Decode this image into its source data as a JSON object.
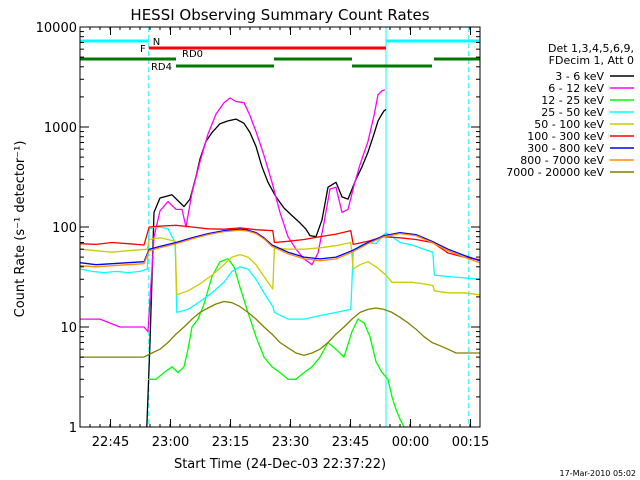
{
  "chart_data": {
    "type": "line",
    "title": "HESSI Observing Summary Count Rates",
    "xlabel": "Start Time (24-Dec-03 22:37:22)",
    "ylabel": "Count Rate (s⁻¹ detector⁻¹)",
    "y_scale": "log",
    "x_unit": "minutes since 22:37:22",
    "xlim": [
      0,
      100
    ],
    "ylim": [
      1,
      10000
    ],
    "x_ticks": [
      {
        "label": "22:45",
        "value": 7.63
      },
      {
        "label": "23:00",
        "value": 22.63
      },
      {
        "label": "23:15",
        "value": 37.63
      },
      {
        "label": "23:30",
        "value": 52.63
      },
      {
        "label": "23:45",
        "value": 67.63
      },
      {
        "label": "00:00",
        "value": 82.63
      },
      {
        "label": "00:15",
        "value": 97.63
      }
    ],
    "y_ticks": [
      {
        "label": "1",
        "value": 1
      },
      {
        "label": "10",
        "value": 10
      },
      {
        "label": "100",
        "value": 100
      },
      {
        "label": "1000",
        "value": 1000
      },
      {
        "label": "10000",
        "value": 10000
      }
    ],
    "timestamp": "17-Mar-2010 05:02",
    "legend": {
      "placement": "right",
      "header": [
        "Det 1,3,4,5,6,9,",
        "FDecim 1, Att 0"
      ],
      "entries": [
        {
          "label": "3 - 6 keV",
          "color": "#000000"
        },
        {
          "label": "6 - 12 keV",
          "color": "#ff00ff"
        },
        {
          "label": "12 - 25 keV",
          "color": "#00ff00"
        },
        {
          "label": "25 - 50 keV",
          "color": "#00ffff"
        },
        {
          "label": "50 - 100 keV",
          "color": "#cccc00"
        },
        {
          "label": "100 - 300 keV",
          "color": "#ff0000"
        },
        {
          "label": "300 - 800 keV",
          "color": "#0000ff"
        },
        {
          "label": "800 - 7000 keV",
          "color": "#ff8c00"
        },
        {
          "label": "7000 - 20000 keV",
          "color": "#808000"
        }
      ]
    },
    "flag_bars": [
      {
        "label": "N",
        "color": "#00ffff",
        "level": 1,
        "segments": [
          [
            0,
            17.2
          ],
          [
            76.5,
            100
          ]
        ]
      },
      {
        "label": "F",
        "color": "#ff0000",
        "level": 2,
        "segments": [
          [
            17.2,
            76.5
          ]
        ]
      },
      {
        "label": "RD0",
        "color": "#007700",
        "level": 3,
        "segments": [
          [
            0,
            24
          ],
          [
            48.5,
            68
          ],
          [
            88.5,
            100
          ]
        ]
      },
      {
        "label": "RD4",
        "color": "#007700",
        "level": 4,
        "segments": [
          [
            24,
            48.5
          ],
          [
            68,
            88
          ]
        ]
      }
    ],
    "vlines": [
      {
        "x": 0.0,
        "color": "#00ffff",
        "style": "solid"
      },
      {
        "x": 17.2,
        "color": "#00ffff",
        "style": "dashed"
      },
      {
        "x": 76.5,
        "color": "#00ffff",
        "style": "solid"
      },
      {
        "x": 97.2,
        "color": "#00ffff",
        "style": "dashed"
      }
    ],
    "series": [
      {
        "name": "3 - 6 keV",
        "color": "#000000",
        "x": [
          16.7,
          17.5,
          18.5,
          20,
          23,
          26,
          27.5,
          29,
          30,
          31.5,
          33,
          35,
          37,
          39,
          41,
          42.5,
          44,
          45.5,
          47,
          49,
          51,
          53,
          55,
          56.5,
          57.5,
          59,
          60.5,
          62,
          64,
          65.5,
          67,
          69,
          70.5,
          72,
          73.5,
          74.5,
          75.5,
          76,
          76.5
        ],
        "y": [
          1,
          7,
          140,
          195,
          210,
          160,
          190,
          320,
          480,
          720,
          880,
          1080,
          1150,
          1200,
          1090,
          880,
          640,
          400,
          280,
          200,
          155,
          130,
          110,
          95,
          82,
          80,
          118,
          250,
          280,
          200,
          190,
          300,
          400,
          560,
          850,
          1150,
          1350,
          1450,
          1500
        ]
      },
      {
        "name": "6 - 12 keV",
        "color": "#ff00ff",
        "x": [
          0,
          5,
          10,
          14,
          16,
          17,
          18.5,
          20,
          22,
          24,
          25.5,
          26.5,
          28,
          30,
          32,
          34,
          36,
          37.5,
          39,
          41,
          42.5,
          44,
          46,
          48,
          50,
          52,
          54,
          56,
          58,
          59.5,
          61,
          62.5,
          64,
          65.5,
          67,
          68.5,
          70,
          72,
          73.5,
          74.5,
          75.5,
          76.2
        ],
        "y": [
          12,
          12,
          10,
          10,
          10,
          9,
          80,
          145,
          180,
          150,
          150,
          100,
          220,
          450,
          850,
          1350,
          1750,
          1950,
          1800,
          1750,
          1300,
          900,
          520,
          280,
          140,
          80,
          60,
          48,
          42,
          55,
          110,
          240,
          250,
          140,
          150,
          260,
          420,
          720,
          1300,
          2100,
          2300,
          2350
        ]
      },
      {
        "name": "12 - 25 keV",
        "color": "#00ff00",
        "x": [
          17,
          19,
          21,
          23,
          24.5,
          26,
          27,
          28,
          29.5,
          31,
          33,
          35,
          37,
          38.5,
          40,
          42,
          44,
          46,
          48,
          50,
          52,
          54,
          56,
          58,
          60,
          62,
          64,
          66,
          68,
          69.5,
          71,
          72.5,
          74,
          75.5,
          77,
          78,
          79,
          80,
          81,
          82
        ],
        "y": [
          3,
          3,
          3.5,
          4,
          3.5,
          4,
          6,
          10,
          12,
          17,
          32,
          45,
          48,
          40,
          25,
          14,
          8,
          5,
          4,
          3.5,
          3,
          3,
          3.5,
          4,
          5,
          7,
          6,
          5,
          9,
          12,
          11,
          8,
          4.5,
          3.5,
          3,
          2,
          1.5,
          1.2,
          1,
          1
        ]
      },
      {
        "name": "25 - 50 keV",
        "color": "#00ffff",
        "x": [
          0,
          3,
          6,
          9,
          12,
          15,
          16.8,
          17.3,
          18.5,
          20,
          22,
          23.8,
          24.2,
          27,
          30,
          33,
          36,
          38,
          40,
          42,
          44,
          46,
          48.2,
          48.6,
          52,
          56,
          60,
          64,
          67.7,
          68.3,
          70,
          72,
          74,
          75.5,
          76.5,
          78,
          80,
          83,
          86,
          88.2,
          88.6,
          92,
          96,
          100
        ],
        "y": [
          38,
          36,
          35,
          36,
          35,
          36,
          38,
          95,
          100,
          100,
          96,
          70,
          14,
          15,
          18,
          22,
          28,
          36,
          40,
          38,
          30,
          22,
          16,
          14,
          12,
          12,
          13,
          14,
          15,
          56,
          65,
          70,
          68,
          80,
          88,
          80,
          70,
          66,
          60,
          56,
          33,
          32,
          31,
          30
        ]
      },
      {
        "name": "50 - 100 keV",
        "color": "#cccc00",
        "x": [
          0,
          4,
          8,
          12,
          16.8,
          17.3,
          20,
          23.8,
          24.2,
          27,
          30,
          33,
          36,
          38,
          40,
          42,
          44,
          46,
          48.2,
          48.6,
          52,
          56,
          60,
          64,
          67.7,
          68.3,
          70,
          72,
          74,
          76.5,
          78,
          80,
          83,
          86,
          88.2,
          88.6,
          92,
          96,
          100
        ],
        "y": [
          60,
          58,
          56,
          58,
          60,
          75,
          78,
          72,
          21,
          23,
          27,
          33,
          42,
          50,
          53,
          50,
          42,
          32,
          24,
          62,
          60,
          60,
          62,
          65,
          70,
          38,
          42,
          45,
          40,
          33,
          28,
          28,
          28,
          27,
          26,
          23,
          22,
          22,
          21
        ]
      },
      {
        "name": "100 - 300 keV",
        "color": "#ff0000",
        "x": [
          0,
          4,
          8,
          12,
          16,
          17.3,
          20,
          24,
          28,
          32,
          36,
          40,
          42,
          44,
          46,
          48.2,
          48.6,
          52,
          56,
          60,
          64,
          67.7,
          68.3,
          72,
          76,
          80,
          84,
          88,
          88.6,
          92,
          96,
          100
        ],
        "y": [
          68,
          67,
          70,
          68,
          66,
          100,
          102,
          104,
          100,
          96,
          95,
          98,
          96,
          94,
          93,
          92,
          70,
          72,
          75,
          80,
          85,
          92,
          67,
          72,
          80,
          78,
          75,
          70,
          68,
          55,
          50,
          47
        ]
      },
      {
        "name": "300 - 800 keV",
        "color": "#0000ff",
        "x": [
          0,
          4,
          8,
          12,
          16,
          17.3,
          20,
          24,
          28,
          32,
          36,
          40,
          42,
          44,
          46,
          48,
          52,
          56,
          60,
          64,
          68,
          72,
          76,
          80,
          84,
          88,
          92,
          96,
          100
        ],
        "y": [
          44,
          42,
          43,
          44,
          45,
          60,
          64,
          70,
          78,
          86,
          92,
          95,
          93,
          88,
          78,
          66,
          56,
          50,
          48,
          50,
          58,
          70,
          82,
          88,
          84,
          72,
          60,
          52,
          46
        ]
      },
      {
        "name": "800 - 7000 keV",
        "color": "#ff8c00",
        "x": [
          0,
          4,
          8,
          12,
          16,
          17.3,
          20,
          24,
          28,
          32,
          36,
          40,
          42,
          44,
          46,
          48,
          52,
          56,
          60,
          64,
          68,
          72,
          76,
          80,
          84,
          88,
          92,
          96,
          100
        ],
        "y": [
          41,
          40,
          41,
          42,
          43,
          58,
          62,
          68,
          76,
          84,
          90,
          93,
          91,
          86,
          76,
          64,
          54,
          48,
          46,
          48,
          56,
          68,
          80,
          86,
          82,
          70,
          58,
          50,
          44
        ]
      },
      {
        "name": "7000 - 20000 keV",
        "color": "#808000",
        "x": [
          0,
          4,
          8,
          12,
          16,
          18,
          20,
          22,
          24,
          26,
          28,
          30,
          32,
          34,
          36,
          38,
          40,
          42,
          44,
          46,
          48,
          50,
          52,
          54,
          56,
          58,
          60,
          62,
          64,
          66,
          68,
          70,
          72,
          74,
          76,
          78,
          80,
          82,
          84,
          86,
          88,
          90,
          92,
          94,
          96,
          98,
          100
        ],
        "y": [
          5,
          5,
          5,
          5,
          5,
          5.5,
          6,
          7,
          8.5,
          10,
          12,
          14,
          15.5,
          17,
          18,
          17.5,
          16,
          14,
          12,
          10,
          8.5,
          7,
          6.2,
          5.5,
          5.2,
          5.5,
          6,
          7,
          8.5,
          10,
          12,
          14,
          15,
          15.5,
          15,
          14,
          12.5,
          11,
          9.5,
          8,
          7,
          6.5,
          6,
          5.5,
          5.5,
          5.5,
          5.5
        ]
      }
    ]
  }
}
